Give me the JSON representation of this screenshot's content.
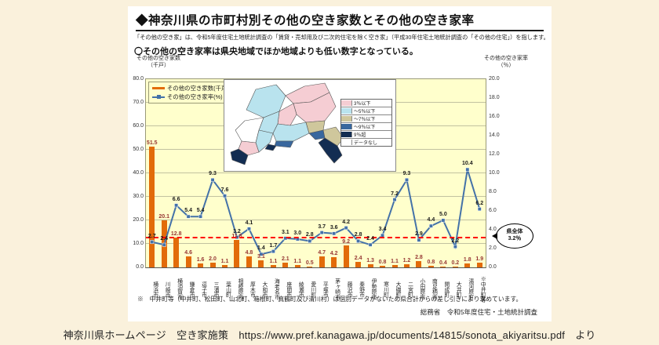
{
  "page": {
    "caption": "神奈川県ホームページ　空き家施策　https://www.pref.kanagawa.jp/documents/14815/sonota_akiyaritsu.pdf　より"
  },
  "panel": {
    "title": "◆神奈川県の市町村別その他の空き家数とその他の空き家率",
    "note": "「その他の空き家」は、令和5年度住宅土地統計調査の「賃貸・売却用及び二次的住宅を除く空き家」（平成30年住宅土地統計調査の「その他の住宅」）を指します。",
    "heading": "〇その他の空き家率は県央地域でほか地域よりも低い数字となっている。",
    "left_axis_title": "その他の空き家数\n（千戸）",
    "right_axis_title": "その他の空き家率\n（％）",
    "footnote": "※　中井町等（中井町、松田町、山北町、箱根町、真鶴町及び清川村）は個別データがないため県合計からの差し引きにより求めています。",
    "source": "総務省　令和5年度住宅・土地統計調査"
  },
  "chart_data": {
    "type": "bar",
    "title": "神奈川県の市町村別その他の空き家数とその他の空き家率",
    "categories": [
      "横浜市",
      "川崎市",
      "横須賀市",
      "鎌倉市",
      "逗子市",
      "三浦市",
      "葉山町",
      "相模原市",
      "厚木市",
      "大和市",
      "海老名市",
      "座間市",
      "綾瀬市",
      "愛川町",
      "平塚市",
      "茅ヶ崎市",
      "藤沢市",
      "秦野市",
      "伊勢原市",
      "寒川町",
      "大磯町",
      "二宮町",
      "小田原市",
      "南足柄市",
      "開成町",
      "大井町",
      "湯河原町",
      "※中井町等"
    ],
    "series": [
      {
        "name": "その他の空き家数(千戸)",
        "type": "bar",
        "axis": "left",
        "color": "#e26b0a",
        "values": [
          51.5,
          20.1,
          12.8,
          4.6,
          1.6,
          2.0,
          1.1,
          11.8,
          4.8,
          3.1,
          1.1,
          2.1,
          1.1,
          0.5,
          4.7,
          4.2,
          9.2,
          2.4,
          1.3,
          0.8,
          1.1,
          1.2,
          2.8,
          0.8,
          0.4,
          0.2,
          1.8,
          1.9
        ]
      },
      {
        "name": "その他の空き家率(%)",
        "type": "line",
        "axis": "right",
        "color": "#4472a8",
        "values": [
          2.7,
          2.4,
          6.6,
          5.4,
          5.4,
          9.3,
          7.6,
          3.2,
          4.1,
          1.4,
          1.7,
          3.1,
          3.0,
          2.8,
          3.7,
          3.6,
          4.2,
          2.8,
          2.4,
          3.4,
          7.2,
          9.3,
          2.9,
          4.4,
          5.0,
          2.2,
          10.4,
          6.2
        ]
      }
    ],
    "left_axis": {
      "min": 0,
      "max": 80,
      "step": 10,
      "label": "その他の空き家数（千戸）"
    },
    "right_axis": {
      "min": 0,
      "max": 20,
      "step": 2,
      "label": "その他の空き家率（％）"
    },
    "reference_line": {
      "axis": "right",
      "value": 3.2,
      "color": "#ff0000",
      "label": "県全体\n3.2％"
    },
    "legend_position": "top-left",
    "plot_bg": "#ffffcc",
    "grid": true
  },
  "map_legend": {
    "items": [
      {
        "label": "3％以下",
        "color": "#f5cdd3"
      },
      {
        "label": "～5％以下",
        "color": "#b9e3ee"
      },
      {
        "label": "～7％以下",
        "color": "#cfc79c"
      },
      {
        "label": "～9％以下",
        "color": "#39679e"
      },
      {
        "label": "9％超",
        "color": "#132d52"
      },
      {
        "label": "データなし",
        "color": "#ffffff"
      }
    ]
  }
}
